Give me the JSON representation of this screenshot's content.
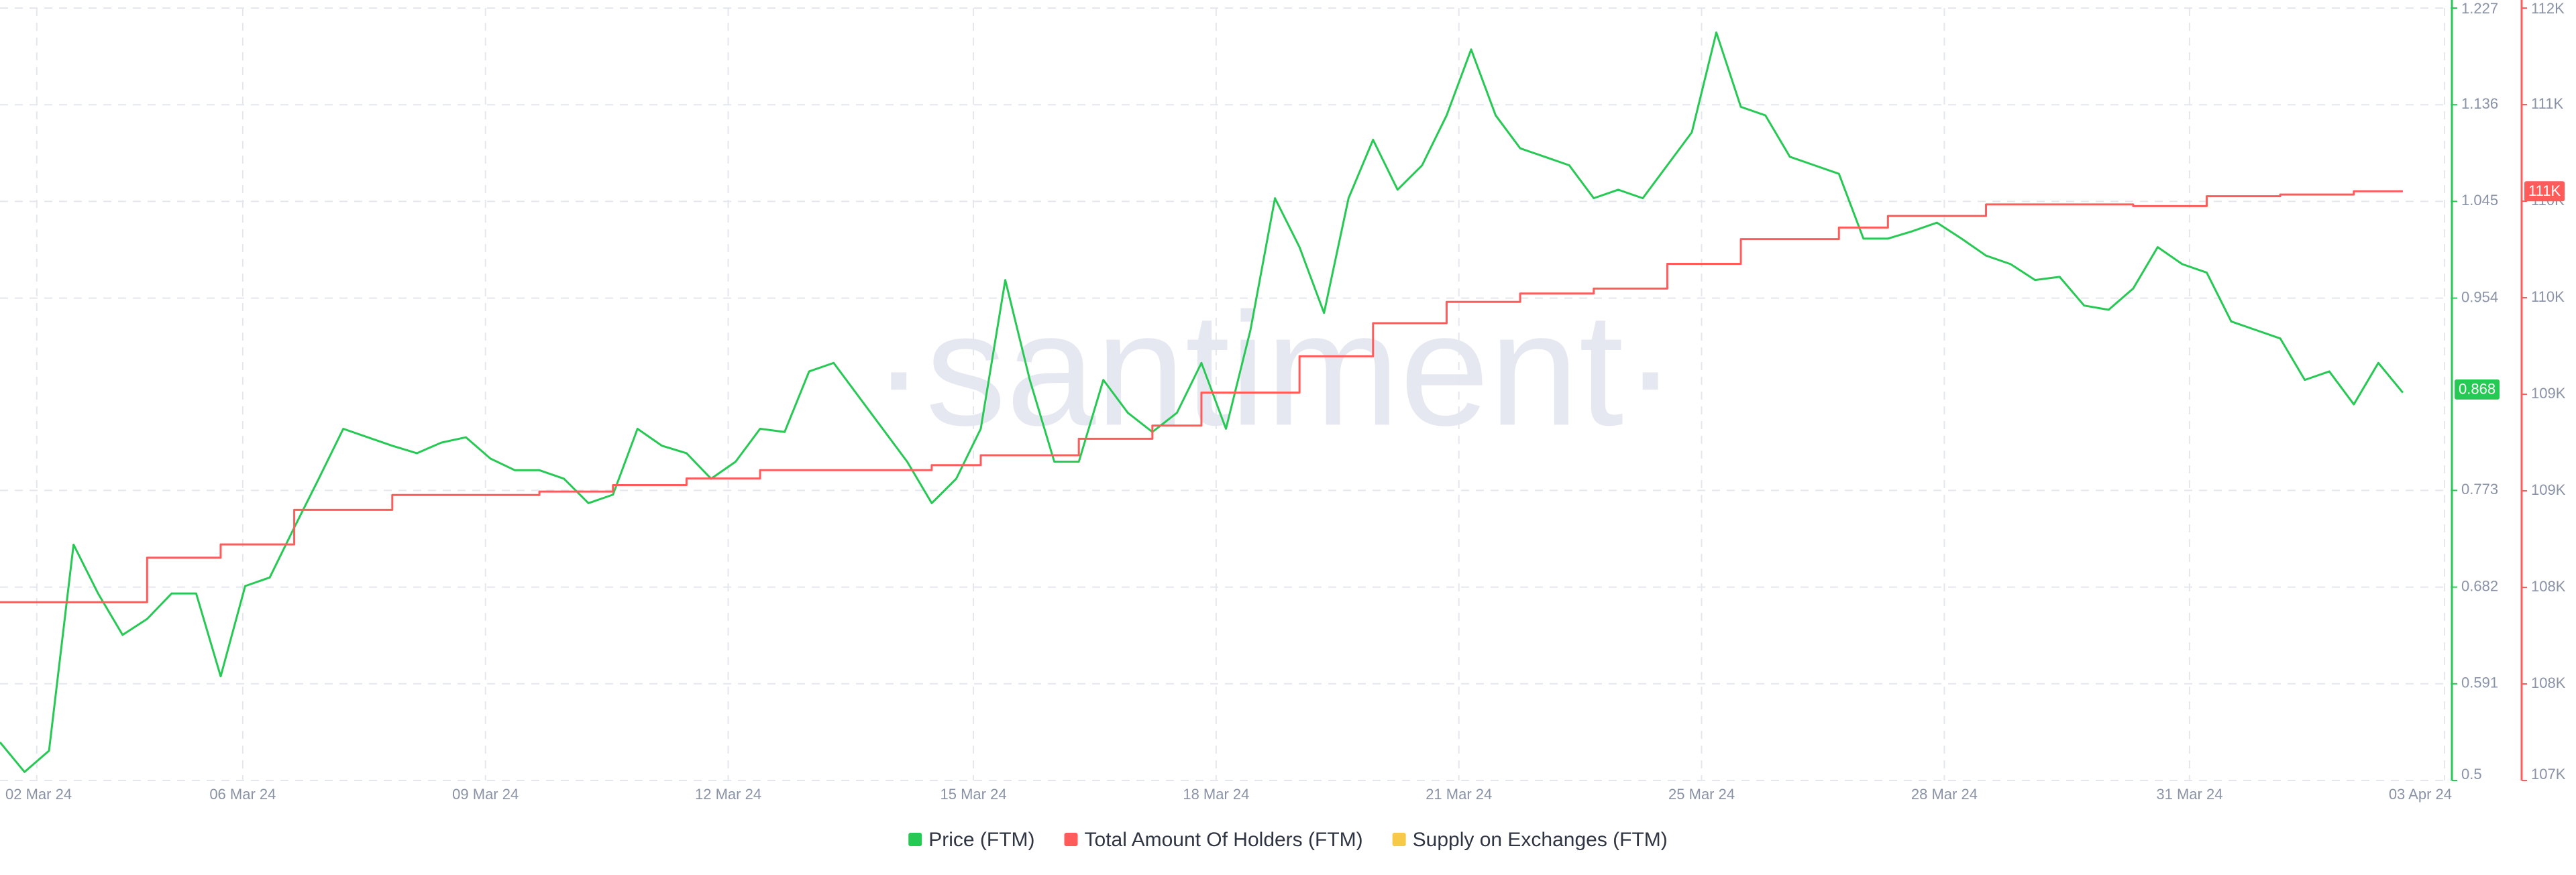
{
  "chart_data": {
    "type": "line",
    "watermark": "·santiment·",
    "xlim": [
      0,
      100
    ],
    "xticks": [
      {
        "value": 1.5,
        "label": "02 Mar 24"
      },
      {
        "value": 9.9,
        "label": "06 Mar 24"
      },
      {
        "value": 19.8,
        "label": "09 Mar 24"
      },
      {
        "value": 29.7,
        "label": "12 Mar 24"
      },
      {
        "value": 39.7,
        "label": "15 Mar 24"
      },
      {
        "value": 49.6,
        "label": "18 Mar 24"
      },
      {
        "value": 59.5,
        "label": "21 Mar 24"
      },
      {
        "value": 69.4,
        "label": "25 Mar 24"
      },
      {
        "value": 79.3,
        "label": "28 Mar 24"
      },
      {
        "value": 89.3,
        "label": "31 Mar 24"
      },
      {
        "value": 99.7,
        "label": "03 Apr 24"
      }
    ],
    "ylim": [
      0.5,
      1.227
    ],
    "yticks": [
      0.5,
      0.591,
      0.682,
      0.773,
      0.954,
      1.045,
      1.136,
      1.227
    ],
    "y2lim": [
      107000,
      112000
    ],
    "y2ticks": [
      {
        "value": 107000,
        "label": "107K"
      },
      {
        "value": 107625,
        "label": "108K"
      },
      {
        "value": 108250,
        "label": "108K"
      },
      {
        "value": 108875,
        "label": "109K"
      },
      {
        "value": 109500,
        "label": "109K"
      },
      {
        "value": 110125,
        "label": "110K"
      },
      {
        "value": 110750,
        "label": "110K"
      },
      {
        "value": 111375,
        "label": "111K"
      },
      {
        "value": 112000,
        "label": "112K"
      }
    ],
    "grid": true,
    "series": [
      {
        "name": "Price (FTM)",
        "color": "#26c953",
        "axis": "y",
        "style": "line",
        "values": [
          0.536,
          0.508,
          0.528,
          0.722,
          0.676,
          0.637,
          0.652,
          0.676,
          0.676,
          0.598,
          0.683,
          0.691,
          0.738,
          0.784,
          0.831,
          0.823,
          0.815,
          0.808,
          0.818,
          0.823,
          0.803,
          0.792,
          0.792,
          0.784,
          0.761,
          0.769,
          0.831,
          0.815,
          0.808,
          0.784,
          0.8,
          0.831,
          0.828,
          0.885,
          0.893,
          0.862,
          0.831,
          0.8,
          0.761,
          0.784,
          0.831,
          0.971,
          0.877,
          0.8,
          0.8,
          0.877,
          0.846,
          0.828,
          0.846,
          0.893,
          0.831,
          0.924,
          1.048,
          1.002,
          0.94,
          1.048,
          1.103,
          1.056,
          1.079,
          1.126,
          1.188,
          1.126,
          1.095,
          1.087,
          1.079,
          1.048,
          1.056,
          1.048,
          1.079,
          1.11,
          1.204,
          1.134,
          1.126,
          1.087,
          1.079,
          1.071,
          1.01,
          1.01,
          1.017,
          1.025,
          1.01,
          0.994,
          0.986,
          0.971,
          0.974,
          0.947,
          0.943,
          0.963,
          1.002,
          0.986,
          0.978,
          0.932,
          0.924,
          0.916,
          0.877,
          0.885,
          0.854,
          0.893,
          0.865
        ],
        "marker": {
          "value": 0.868,
          "label": "0.868"
        }
      },
      {
        "name": "Total Amount Of Holders (FTM)",
        "color": "#ff5b5b",
        "axis": "y2",
        "style": "step",
        "values": [
          108154,
          108154,
          108154,
          108154,
          108154,
          108154,
          108442,
          108442,
          108442,
          108528,
          108528,
          108528,
          108752,
          108752,
          108752,
          108752,
          108848,
          108848,
          108848,
          108848,
          108848,
          108848,
          108870,
          108870,
          108870,
          108912,
          108912,
          108912,
          108955,
          108955,
          108955,
          109009,
          109009,
          109009,
          109009,
          109009,
          109009,
          109009,
          109041,
          109041,
          109105,
          109105,
          109105,
          109105,
          109212,
          109212,
          109212,
          109297,
          109297,
          109511,
          109511,
          109511,
          109511,
          109746,
          109746,
          109746,
          109960,
          109960,
          109960,
          110098,
          110098,
          110098,
          110152,
          110152,
          110152,
          110184,
          110184,
          110184,
          110344,
          110344,
          110344,
          110504,
          110504,
          110504,
          110504,
          110579,
          110579,
          110654,
          110654,
          110654,
          110654,
          110729,
          110729,
          110729,
          110729,
          110729,
          110729,
          110718,
          110718,
          110718,
          110782,
          110782,
          110782,
          110793,
          110793,
          110793,
          110814,
          110814,
          110814
        ],
        "marker": {
          "value": 110814,
          "label": "111K"
        }
      },
      {
        "name": "Supply on Exchanges (FTM)",
        "color": "#f7c948",
        "axis": "y2"
      }
    ]
  }
}
